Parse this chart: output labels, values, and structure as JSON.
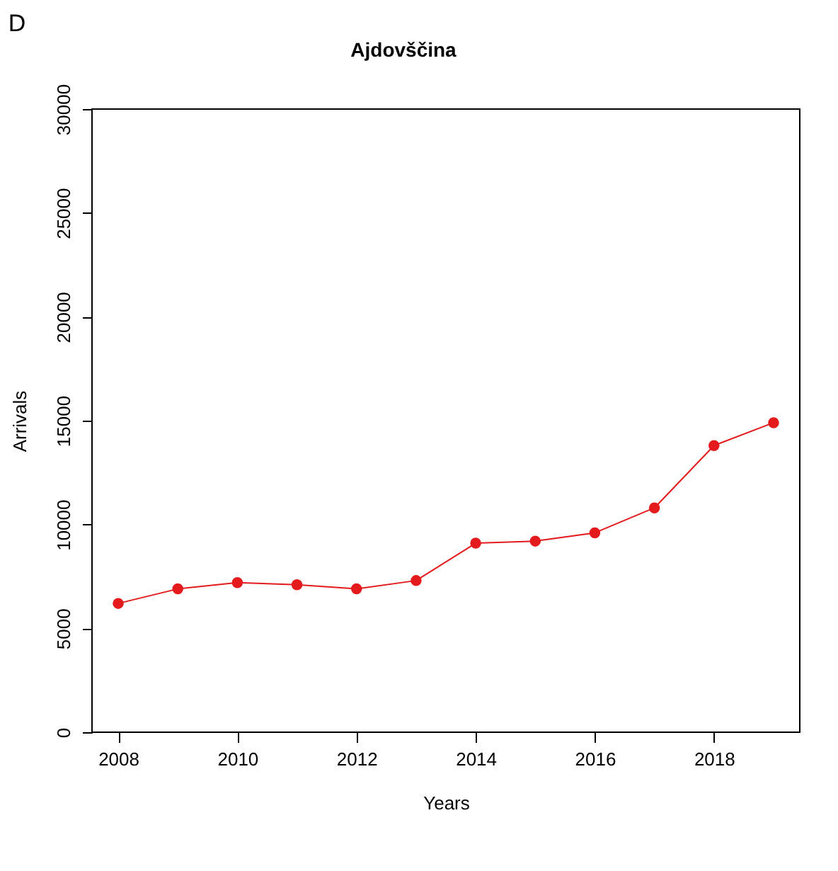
{
  "chart_data": {
    "type": "line",
    "title": "Ajdovščina",
    "xlabel": "Years",
    "ylabel": "Arrivals",
    "x": [
      2008,
      2009,
      2010,
      2011,
      2012,
      2013,
      2014,
      2015,
      2016,
      2017,
      2018,
      2019
    ],
    "series": [
      {
        "color": "#e41a1c",
        "values": [
          6200,
          6900,
          7200,
          7100,
          6900,
          7300,
          9100,
          9200,
          9600,
          10800,
          13800,
          14900
        ]
      }
    ],
    "xlim": [
      2007.56,
      2019.44
    ],
    "xticks": [
      2008,
      2010,
      2012,
      2014,
      2016,
      2018
    ],
    "ylim": [
      0,
      30000
    ],
    "yticks": [
      0,
      5000,
      10000,
      15000,
      20000,
      25000,
      30000
    ],
    "grid": false,
    "marker": "circle",
    "line_style": "solid",
    "annotations": [
      "D"
    ]
  }
}
